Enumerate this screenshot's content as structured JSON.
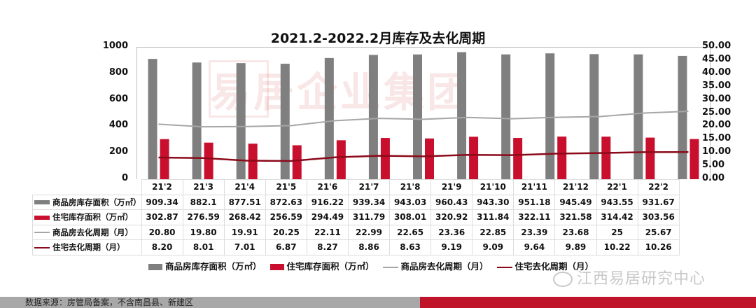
{
  "chart_data": {
    "type": "bar",
    "title": "2021.2-2022.2月库存及去化周期",
    "categories": [
      "21'2",
      "21'3",
      "21'4",
      "21'5",
      "21'6",
      "21'7",
      "21'8",
      "21'9",
      "21'10",
      "21'11",
      "21'12",
      "22'1",
      "22'2"
    ],
    "series": [
      {
        "name": "商品房库存面积（万㎡）",
        "type": "bar",
        "axis": "left",
        "color": "#7f7f7f",
        "values": [
          909.34,
          882.1,
          877.51,
          872.63,
          916.22,
          939.34,
          943.03,
          960.43,
          943.3,
          951.18,
          945.49,
          943.55,
          931.67
        ],
        "labels": [
          "909.34",
          "882.1",
          "877.51",
          "872.63",
          "916.22",
          "939.34",
          "943.03",
          "960.43",
          "943.30",
          "951.18",
          "945.49",
          "943.55",
          "931.67"
        ]
      },
      {
        "name": "住宅库存面积（万㎡）",
        "type": "bar",
        "axis": "left",
        "color": "#c8102e",
        "values": [
          302.87,
          276.59,
          268.42,
          256.59,
          294.49,
          311.79,
          308.01,
          320.92,
          311.84,
          322.11,
          321.58,
          314.42,
          303.56
        ],
        "labels": [
          "302.87",
          "276.59",
          "268.42",
          "256.59",
          "294.49",
          "311.79",
          "308.01",
          "320.92",
          "311.84",
          "322.11",
          "321.58",
          "314.42",
          "303.56"
        ]
      },
      {
        "name": "商品房去化周期（月）",
        "type": "line",
        "axis": "right",
        "color": "#a6a6a6",
        "values": [
          20.8,
          19.8,
          19.91,
          20.25,
          22.11,
          22.99,
          22.65,
          23.36,
          22.85,
          23.39,
          23.68,
          25,
          25.67
        ],
        "labels": [
          "20.80",
          "19.80",
          "19.91",
          "20.25",
          "22.11",
          "22.99",
          "22.65",
          "23.36",
          "22.85",
          "23.39",
          "23.68",
          "25",
          "25.67"
        ]
      },
      {
        "name": "住宅去化周期（月）",
        "type": "line",
        "axis": "right",
        "color": "#8b0a1a",
        "values": [
          8.2,
          8.01,
          7.01,
          6.87,
          8.27,
          8.86,
          8.63,
          9.19,
          9.09,
          9.64,
          9.89,
          10.22,
          10.26
        ],
        "labels": [
          "8.20",
          "8.01",
          "7.01",
          "6.87",
          "8.27",
          "8.86",
          "8.63",
          "9.19",
          "9.09",
          "9.64",
          "9.89",
          "10.22",
          "10.26"
        ]
      }
    ],
    "ylim_left": [
      0,
      1000
    ],
    "yticks_left": [
      "1000",
      "800",
      "600",
      "400",
      "200",
      "0"
    ],
    "ylim_right": [
      0,
      50
    ],
    "yticks_right": [
      "50.00",
      "45.00",
      "40.00",
      "35.00",
      "30.00",
      "25.00",
      "20.00",
      "15.00",
      "10.00",
      "5.00",
      "0.00"
    ],
    "xlabel": "",
    "ylabel": "",
    "grid": false,
    "legend_position": "bottom",
    "data_table": true
  },
  "table": {
    "row_labels": [
      "商品房库存面积（万㎡）",
      "住宅库存面积（万㎡）",
      "商品房去化周期（月）",
      "住宅去化周期（月）"
    ]
  },
  "legend": {
    "items": [
      "商品房库存面积（万㎡）",
      "住宅库存面积（万㎡）",
      "商品房去化周期（月）",
      "住宅去化周期（月）"
    ]
  },
  "watermark": {
    "text": "易居企业集团",
    "wechat_account": "江西易居研究中心"
  },
  "footer": {
    "source": "数据来源：房管局备案，不含南昌县、新建区"
  },
  "colors": {
    "commercial_bar": "#7f7f7f",
    "residential_bar": "#c8102e",
    "commercial_line": "#a6a6a6",
    "residential_line": "#8b0a1a",
    "footer_red": "#c0142a",
    "footer_grey": "#a8a8a8"
  }
}
